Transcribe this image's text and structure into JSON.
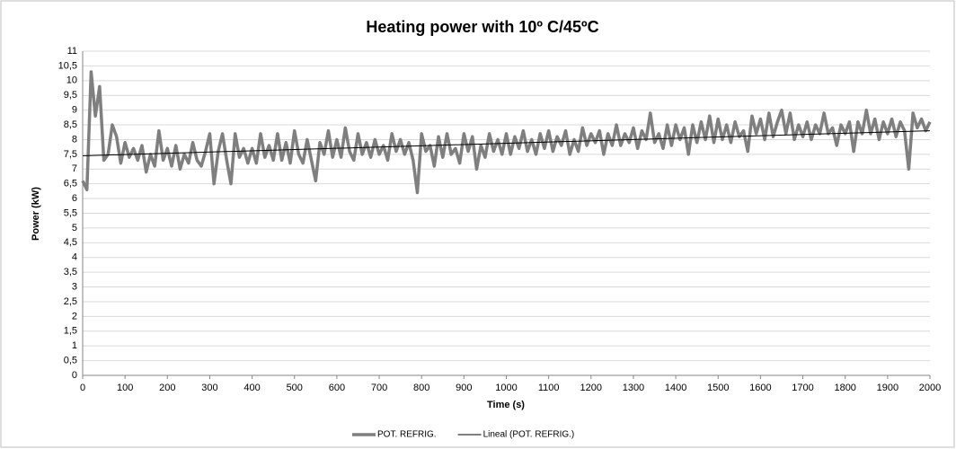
{
  "chart_data": {
    "type": "line",
    "title": "Heating  power with 10º C/45ºC",
    "xlabel": "Time (s)",
    "ylabel": "Power (kW)",
    "xlim": [
      0,
      2000
    ],
    "xticks": [
      0,
      100,
      200,
      300,
      400,
      500,
      600,
      700,
      800,
      900,
      1000,
      1100,
      1200,
      1300,
      1400,
      1500,
      1600,
      1700,
      1800,
      1900,
      2000
    ],
    "ylim": [
      0,
      11
    ],
    "yticks": [
      0,
      {
        "value": 0.5,
        "label": "0,5"
      },
      1,
      {
        "value": 1.5,
        "label": "1,5"
      },
      2,
      {
        "value": 2.5,
        "label": "2,5"
      },
      3,
      {
        "value": 3.5,
        "label": "3,5"
      },
      4,
      {
        "value": 4.5,
        "label": "4,5"
      },
      5,
      {
        "value": 5.5,
        "label": "5,5"
      },
      6,
      {
        "value": 6.5,
        "label": "6,5"
      },
      7,
      {
        "value": 7.5,
        "label": "7,5"
      },
      8,
      {
        "value": 8.5,
        "label": "8,5"
      },
      9,
      {
        "value": 9.5,
        "label": "9,5"
      },
      10,
      {
        "value": 10.5,
        "label": "10,5"
      },
      11
    ],
    "grid": true,
    "legend": "bottom",
    "series": [
      {
        "name": "POT. REFRIG.",
        "color": "#7f7f7f",
        "x": [
          0,
          10,
          20,
          30,
          40,
          50,
          60,
          70,
          80,
          90,
          100,
          110,
          120,
          130,
          140,
          150,
          160,
          170,
          180,
          190,
          200,
          210,
          220,
          230,
          240,
          250,
          260,
          270,
          280,
          290,
          300,
          310,
          320,
          330,
          340,
          350,
          360,
          370,
          380,
          390,
          400,
          410,
          420,
          430,
          440,
          450,
          460,
          470,
          480,
          490,
          500,
          510,
          520,
          530,
          540,
          550,
          560,
          570,
          580,
          590,
          600,
          610,
          620,
          630,
          640,
          650,
          660,
          670,
          680,
          690,
          700,
          710,
          720,
          730,
          740,
          750,
          760,
          770,
          780,
          790,
          800,
          810,
          820,
          830,
          840,
          850,
          860,
          870,
          880,
          890,
          900,
          910,
          920,
          930,
          940,
          950,
          960,
          970,
          980,
          990,
          1000,
          1010,
          1020,
          1030,
          1040,
          1050,
          1060,
          1070,
          1080,
          1090,
          1100,
          1110,
          1120,
          1130,
          1140,
          1150,
          1160,
          1170,
          1180,
          1190,
          1200,
          1210,
          1220,
          1230,
          1240,
          1250,
          1260,
          1270,
          1280,
          1290,
          1300,
          1310,
          1320,
          1330,
          1340,
          1350,
          1360,
          1370,
          1380,
          1390,
          1400,
          1410,
          1420,
          1430,
          1440,
          1450,
          1460,
          1470,
          1480,
          1490,
          1500,
          1510,
          1520,
          1530,
          1540,
          1550,
          1560,
          1570,
          1580,
          1590,
          1600,
          1610,
          1620,
          1630,
          1640,
          1650,
          1660,
          1670,
          1680,
          1690,
          1700,
          1710,
          1720,
          1730,
          1740,
          1750,
          1760,
          1770,
          1780,
          1790,
          1800,
          1810,
          1820,
          1830,
          1840,
          1850,
          1860,
          1870,
          1880,
          1890,
          1900,
          1910,
          1920,
          1930,
          1940,
          1950,
          1960,
          1970,
          1980,
          1990,
          2000
        ],
        "values": [
          6.6,
          6.3,
          10.3,
          8.8,
          9.8,
          7.3,
          7.5,
          8.5,
          8.1,
          7.2,
          7.9,
          7.4,
          7.7,
          7.3,
          7.8,
          6.9,
          7.5,
          7.1,
          8.3,
          7.3,
          7.7,
          7.1,
          7.8,
          7.0,
          7.5,
          7.2,
          7.9,
          7.3,
          7.1,
          7.6,
          8.2,
          6.5,
          7.6,
          8.2,
          7.3,
          6.5,
          8.2,
          7.4,
          7.7,
          7.2,
          7.7,
          7.2,
          8.2,
          7.4,
          7.8,
          7.3,
          8.2,
          7.3,
          7.9,
          7.2,
          8.3,
          7.5,
          7.2,
          8.0,
          7.3,
          6.6,
          7.9,
          7.5,
          8.3,
          7.4,
          8.0,
          7.4,
          8.4,
          7.6,
          7.3,
          8.2,
          7.5,
          7.9,
          7.4,
          8.0,
          7.5,
          7.8,
          7.3,
          8.2,
          7.6,
          8.0,
          7.5,
          7.9,
          7.3,
          6.2,
          8.2,
          7.6,
          7.8,
          7.1,
          8.1,
          7.4,
          8.2,
          7.5,
          7.7,
          7.2,
          8.2,
          7.6,
          8.1,
          7.0,
          7.8,
          7.4,
          8.2,
          7.6,
          8.0,
          7.5,
          8.2,
          7.5,
          8.1,
          7.7,
          8.3,
          7.6,
          8.0,
          7.5,
          8.2,
          7.7,
          8.3,
          7.6,
          8.1,
          7.8,
          8.3,
          7.5,
          8.0,
          7.6,
          8.4,
          7.8,
          8.2,
          7.9,
          8.3,
          7.5,
          8.2,
          7.8,
          8.5,
          7.8,
          8.2,
          7.9,
          8.4,
          7.7,
          8.3,
          8.0,
          8.9,
          7.9,
          8.2,
          7.7,
          8.5,
          7.8,
          8.5,
          8.0,
          8.4,
          7.5,
          8.5,
          7.9,
          8.6,
          8.0,
          8.8,
          7.9,
          8.7,
          8.0,
          8.5,
          7.9,
          8.6,
          8.1,
          8.3,
          7.6,
          8.8,
          8.2,
          8.7,
          8.0,
          8.9,
          8.1,
          8.6,
          9.0,
          8.2,
          8.9,
          8.0,
          8.5,
          8.1,
          8.6,
          8.0,
          8.5,
          8.2,
          8.9,
          8.2,
          8.4,
          7.8,
          8.5,
          8.2,
          8.6,
          7.6,
          8.6,
          8.2,
          9.0,
          8.2,
          8.7,
          8.0,
          8.6,
          8.2,
          8.7,
          8.1,
          8.6,
          8.3,
          7.0,
          8.9,
          8.4,
          8.7,
          8.3,
          8.6
        ]
      },
      {
        "name": "Lineal (POT. REFRIG.)",
        "color": "#000000",
        "x": [
          0,
          2000
        ],
        "values": [
          7.45,
          8.3
        ]
      }
    ]
  }
}
